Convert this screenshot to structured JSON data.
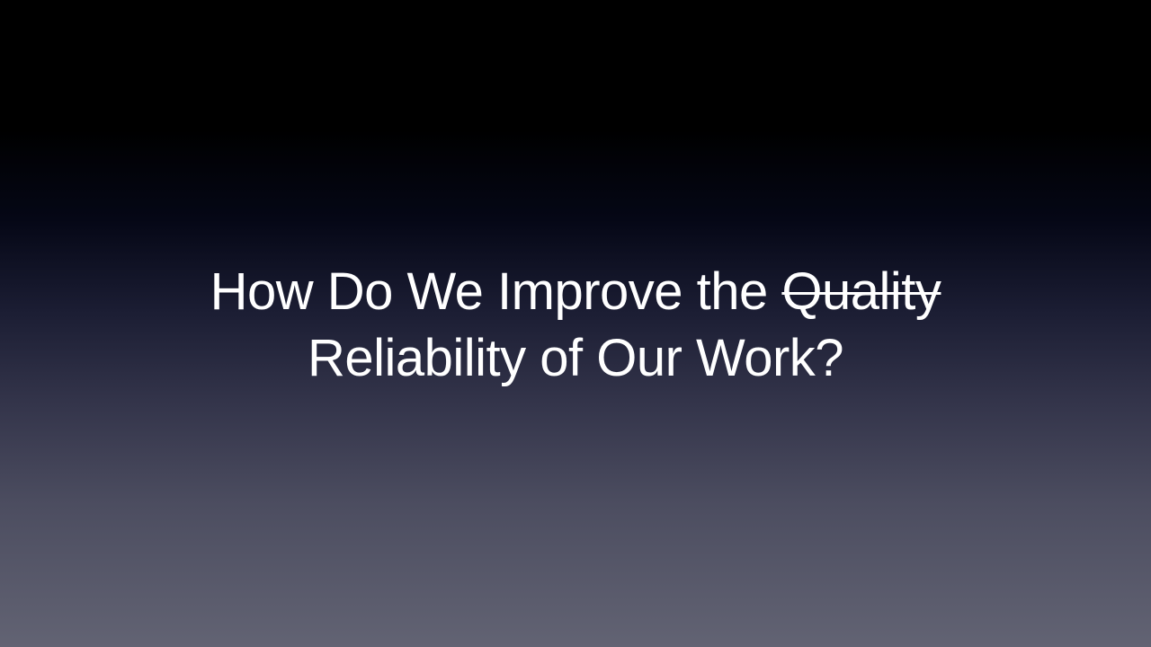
{
  "slide": {
    "title": {
      "line1_prefix": "How Do We Improve the ",
      "line1_struck": "Quality",
      "line2": "Reliability of Our Work?"
    }
  }
}
